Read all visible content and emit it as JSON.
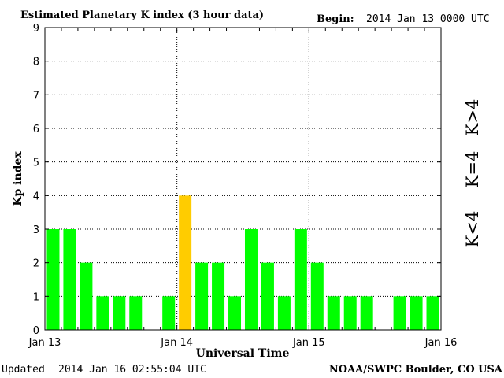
{
  "header": {
    "title": "Estimated Planetary K index (3 hour data)",
    "begin_label": "Begin:",
    "begin_value": "2014 Jan 13 0000 UTC"
  },
  "footer": {
    "updated_label": "Updated",
    "updated_value": "2014 Jan 16 02:55:04 UTC",
    "source": "NOAA/SWPC Boulder, CO USA"
  },
  "colors": {
    "low": "#00ff00",
    "moderate": "#ffcc00",
    "high": "#ff2200",
    "grid": "#000000"
  },
  "chart_data": {
    "type": "bar",
    "xlabel": "Universal Time",
    "ylabel": "Kp index",
    "ylim": [
      0,
      9
    ],
    "yticks": [
      0,
      1,
      2,
      3,
      4,
      5,
      6,
      7,
      8,
      9
    ],
    "grid": true,
    "x_tick_labels": [
      "Jan 13",
      "Jan 14",
      "Jan 15",
      "Jan 16"
    ],
    "interval_hours": 3,
    "categories": [
      "Jan 13 00",
      "Jan 13 03",
      "Jan 13 06",
      "Jan 13 09",
      "Jan 13 12",
      "Jan 13 15",
      "Jan 13 18",
      "Jan 13 21",
      "Jan 14 00",
      "Jan 14 03",
      "Jan 14 06",
      "Jan 14 09",
      "Jan 14 12",
      "Jan 14 15",
      "Jan 14 18",
      "Jan 14 21",
      "Jan 15 00",
      "Jan 15 03",
      "Jan 15 06",
      "Jan 15 09",
      "Jan 15 12",
      "Jan 15 15",
      "Jan 15 18",
      "Jan 15 21"
    ],
    "values": [
      3,
      3,
      2,
      1,
      1,
      1,
      0,
      1,
      4,
      2,
      2,
      1,
      3,
      2,
      1,
      3,
      2,
      1,
      1,
      1,
      0,
      1,
      1,
      1
    ],
    "legend": [
      {
        "label": "K<4",
        "color": "#00ff00"
      },
      {
        "label": "K=4",
        "color": "#ffcc00"
      },
      {
        "label": "K>4",
        "color": "#ff2200"
      }
    ]
  }
}
